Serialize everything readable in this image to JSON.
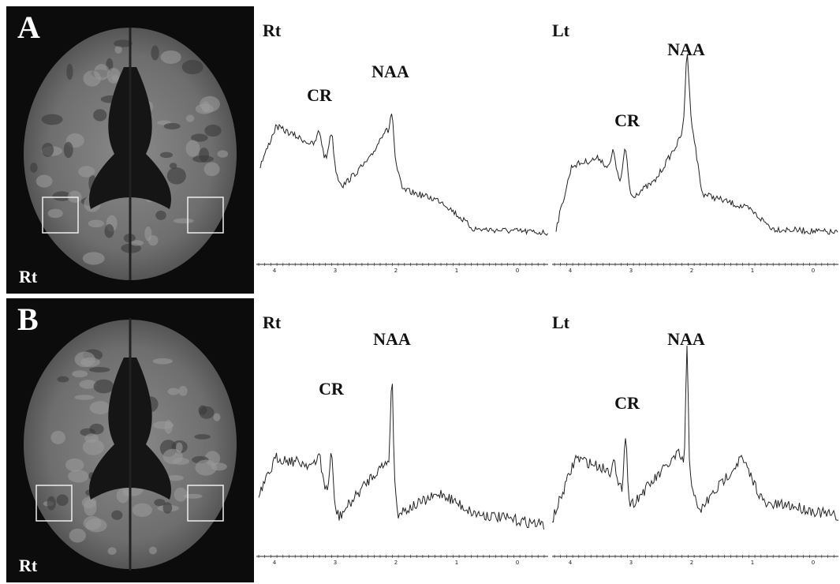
{
  "panels": [
    {
      "label": "A",
      "image_label": "Rt",
      "spectra": [
        {
          "side": "Rt",
          "peaks": [
            "CR",
            "NAA"
          ],
          "axis": [
            "4",
            "3",
            "2",
            "1",
            "0"
          ]
        },
        {
          "side": "Lt",
          "peaks": [
            "CR",
            "NAA"
          ],
          "axis": [
            "4",
            "3",
            "2",
            "1",
            "0"
          ]
        }
      ]
    },
    {
      "label": "B",
      "image_label": "Rt",
      "spectra": [
        {
          "side": "Rt",
          "peaks": [
            "CR",
            "NAA"
          ],
          "axis": [
            "4",
            "3",
            "2",
            "1",
            "0"
          ]
        },
        {
          "side": "Lt",
          "peaks": [
            "CR",
            "NAA"
          ],
          "axis": [
            "4",
            "3",
            "2",
            "1",
            "0"
          ]
        }
      ]
    }
  ]
}
